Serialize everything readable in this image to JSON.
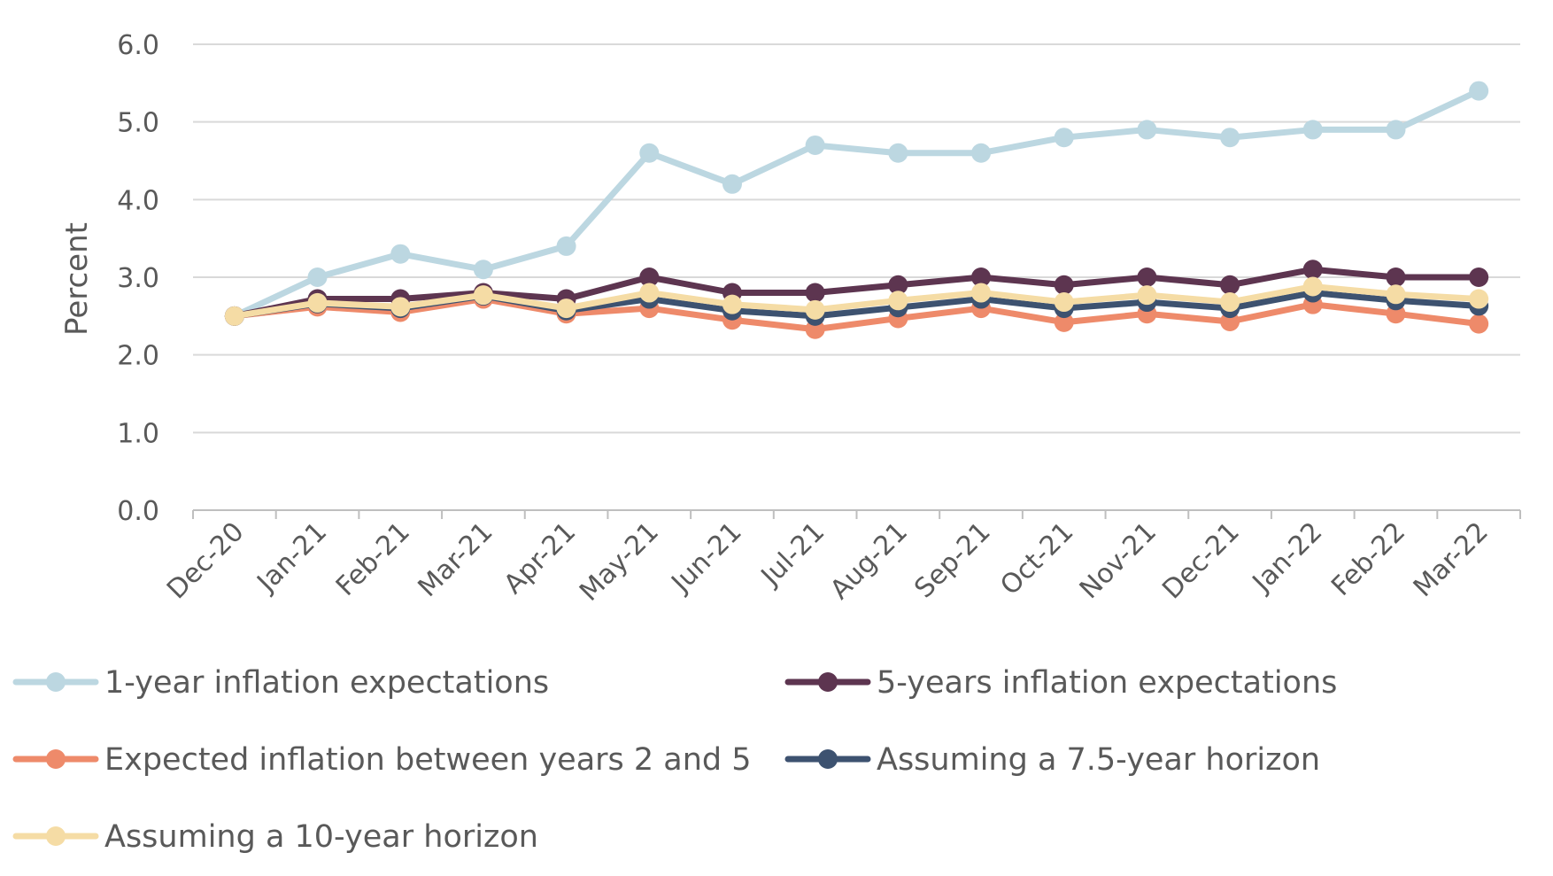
{
  "chart_data": {
    "type": "line",
    "title": "",
    "xlabel": "",
    "ylabel": "Percent",
    "ylim": [
      0,
      6
    ],
    "yticks": [
      "0.0",
      "1.0",
      "2.0",
      "3.0",
      "4.0",
      "5.0",
      "6.0"
    ],
    "grid": true,
    "legend_position": "bottom",
    "categories": [
      "Dec-20",
      "Jan-21",
      "Feb-21",
      "Mar-21",
      "Apr-21",
      "May-21",
      "Jun-21",
      "Jul-21",
      "Aug-21",
      "Sep-21",
      "Oct-21",
      "Nov-21",
      "Dec-21",
      "Jan-22",
      "Feb-22",
      "Mar-22"
    ],
    "series": [
      {
        "name": "1-year inflation expectations",
        "color": "#bcd7e1",
        "values": [
          2.5,
          3.0,
          3.3,
          3.1,
          3.4,
          4.6,
          4.2,
          4.7,
          4.6,
          4.6,
          4.8,
          4.9,
          4.8,
          4.9,
          4.9,
          5.4
        ]
      },
      {
        "name": "5-years inflation expectations",
        "color": "#5d3550",
        "values": [
          2.5,
          2.72,
          2.72,
          2.8,
          2.72,
          3.0,
          2.8,
          2.8,
          2.9,
          3.0,
          2.9,
          3.0,
          2.9,
          3.1,
          3.0,
          3.0
        ]
      },
      {
        "name": "Expected inflation between years 2 and 5",
        "color": "#ee8a6a",
        "values": [
          2.5,
          2.62,
          2.55,
          2.72,
          2.53,
          2.6,
          2.45,
          2.33,
          2.47,
          2.6,
          2.42,
          2.53,
          2.43,
          2.65,
          2.53,
          2.4
        ]
      },
      {
        "name": "Assuming a 7.5-year horizon",
        "color": "#3d5270",
        "values": [
          2.5,
          2.66,
          2.6,
          2.76,
          2.57,
          2.72,
          2.57,
          2.5,
          2.61,
          2.72,
          2.6,
          2.68,
          2.6,
          2.8,
          2.7,
          2.63
        ]
      },
      {
        "name": "Assuming a 10-year horizon",
        "color": "#f5dca5",
        "values": [
          2.5,
          2.67,
          2.62,
          2.77,
          2.6,
          2.8,
          2.65,
          2.58,
          2.7,
          2.8,
          2.68,
          2.77,
          2.68,
          2.88,
          2.78,
          2.72
        ]
      }
    ]
  }
}
